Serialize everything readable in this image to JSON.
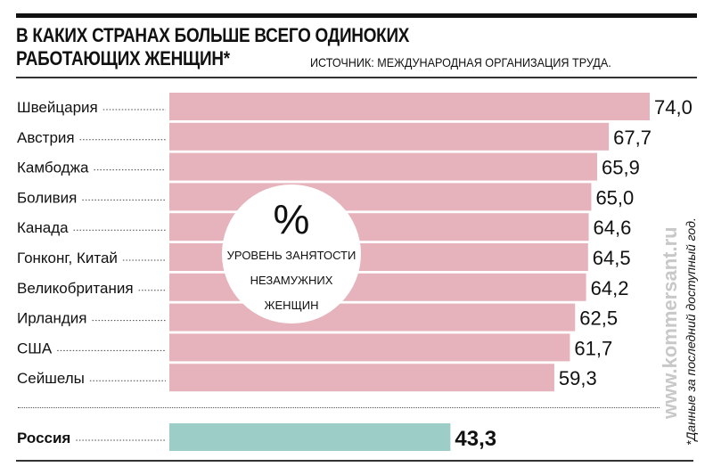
{
  "header": {
    "title_line1": "В КАКИХ СТРАНАХ БОЛЬШЕ ВСЕГО ОДИНОКИХ",
    "title_line2": "РАБОТАЮЩИХ ЖЕНЩИН*",
    "source": "ИСТОЧНИК: МЕЖДУНАРОДНАЯ ОРГАНИЗАЦИЯ ТРУДА."
  },
  "circle": {
    "symbol": "%",
    "label_line1": "УРОВЕНЬ ЗАНЯТОСТИ",
    "label_line2": "НЕЗАМУЖНИХ",
    "label_line3": "ЖЕНЩИН"
  },
  "watermark": "www.kommersant.ru",
  "footnote": "*Данные за последний доступный год.",
  "colors": {
    "bar": "#e6b3bc",
    "highlight": "#9ccdc6"
  },
  "chart_data": {
    "type": "bar",
    "orientation": "horizontal",
    "categories": [
      "Швейцария",
      "Австрия",
      "Камбоджа",
      "Боливия",
      "Канада",
      "Гонконг, Китай",
      "Великобритания",
      "Ирландия",
      "США",
      "Сейшелы",
      "Россия"
    ],
    "values": [
      74.0,
      67.7,
      65.9,
      65.0,
      64.6,
      64.5,
      64.2,
      62.5,
      61.7,
      59.3,
      43.3
    ],
    "value_labels": [
      "74,0",
      "67,7",
      "65,9",
      "65,0",
      "64,6",
      "64,5",
      "64,2",
      "62,5",
      "61,7",
      "59,3",
      "43,3"
    ],
    "highlight": "Россия",
    "xlim": [
      0,
      74
    ],
    "grid": false
  }
}
